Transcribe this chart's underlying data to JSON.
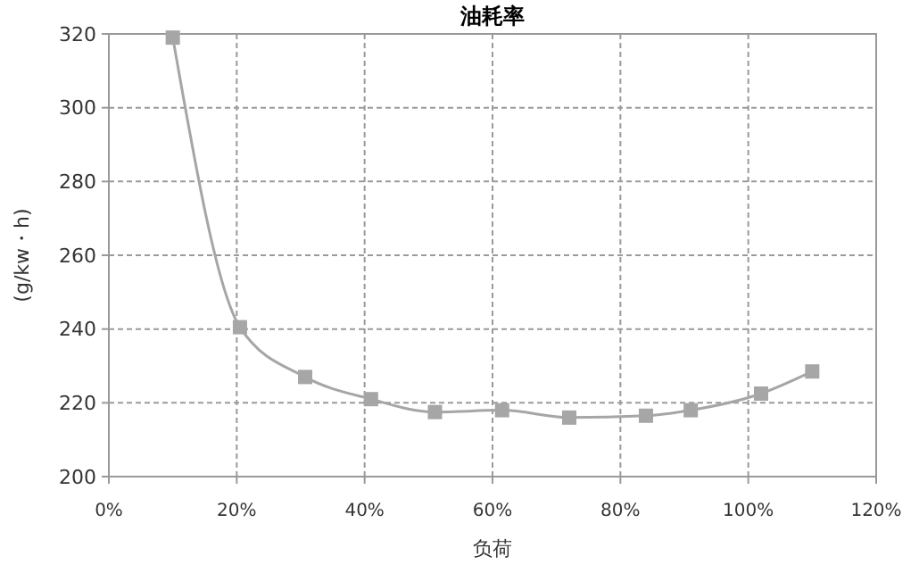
{
  "chart_data": {
    "type": "line",
    "title": "油耗率",
    "xlabel": "负荷",
    "ylabel": "(g/kw・h)",
    "x": [
      10,
      20.5,
      30.7,
      41,
      51,
      61.5,
      72,
      84,
      91,
      102,
      110
    ],
    "series": [
      {
        "color": "#a6a6a6",
        "values": [
          319,
          240.5,
          227,
          221,
          217.5,
          218,
          216,
          216.5,
          218,
          222.5,
          228.5
        ]
      }
    ],
    "xlim": [
      0,
      120
    ],
    "xticks": [
      {
        "value": 0,
        "label": "0%"
      },
      {
        "value": 20,
        "label": "20%"
      },
      {
        "value": 40,
        "label": "40%"
      },
      {
        "value": 60,
        "label": "60%"
      },
      {
        "value": 80,
        "label": "80%"
      },
      {
        "value": 100,
        "label": "100%"
      },
      {
        "value": 120,
        "label": "120%"
      }
    ],
    "ylim": [
      200,
      320
    ],
    "yticks": [
      200,
      220,
      240,
      260,
      280,
      300,
      320
    ],
    "grid": true,
    "marker": "square",
    "line_style": "solid"
  }
}
